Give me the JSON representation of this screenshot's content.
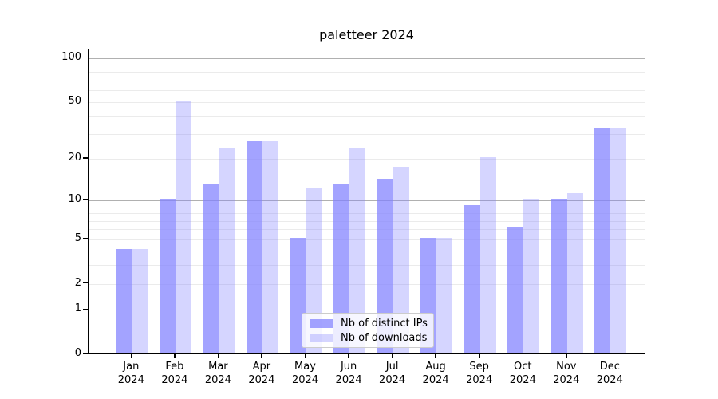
{
  "chart_data": {
    "type": "bar",
    "title": "paletteer 2024",
    "categories": [
      [
        "Jan",
        "2024"
      ],
      [
        "Feb",
        "2024"
      ],
      [
        "Mar",
        "2024"
      ],
      [
        "Apr",
        "2024"
      ],
      [
        "May",
        "2024"
      ],
      [
        "Jun",
        "2024"
      ],
      [
        "Jul",
        "2024"
      ],
      [
        "Aug",
        "2024"
      ],
      [
        "Sep",
        "2024"
      ],
      [
        "Oct",
        "2024"
      ],
      [
        "Nov",
        "2024"
      ],
      [
        "Dec",
        "2024"
      ]
    ],
    "series": [
      {
        "name": "Nb of distinct IPs",
        "color": "rgba(127,127,255,0.72)",
        "values": [
          4,
          10,
          13,
          26,
          5,
          13,
          14,
          5,
          9,
          6,
          10,
          32
        ]
      },
      {
        "name": "Nb of downloads",
        "color": "rgba(127,127,255,0.33)",
        "values": [
          4,
          50,
          23,
          26,
          12,
          23,
          17,
          5,
          20,
          10,
          11,
          32
        ]
      }
    ],
    "yscale": "log1p",
    "yticks": [
      0,
      1,
      2,
      5,
      10,
      20,
      50,
      100
    ],
    "major_gridlines": [
      1,
      10,
      100
    ],
    "minor_gridlines": [
      2,
      3,
      4,
      5,
      6,
      7,
      8,
      9,
      20,
      30,
      40,
      50,
      60,
      70,
      80,
      90
    ],
    "ylim": [
      0,
      115
    ],
    "grid": true,
    "legend_position": "lower center",
    "colors": {
      "axis": "#000000",
      "major_grid": "#b0b0b0",
      "minor_grid": "#ebebeb",
      "background": "#ffffff"
    }
  }
}
